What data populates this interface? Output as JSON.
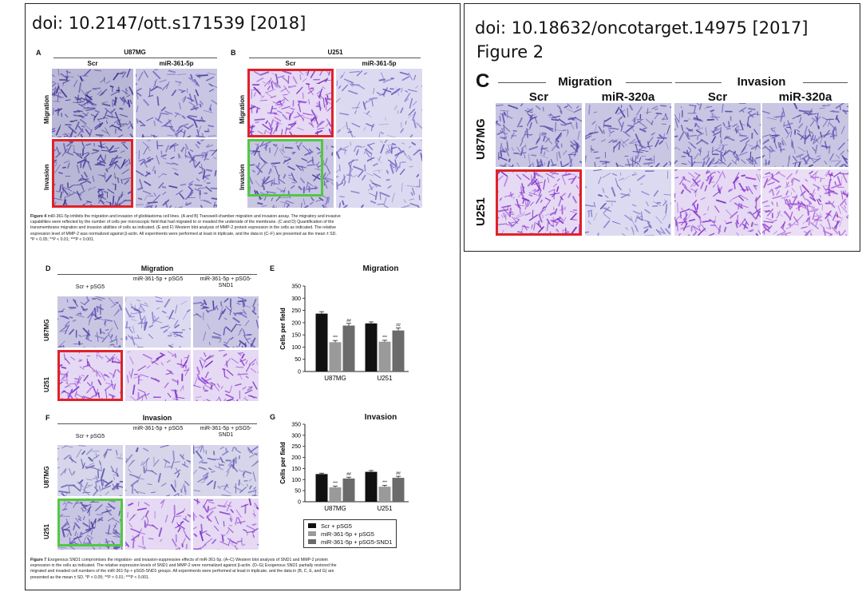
{
  "left": {
    "doi": "doi: 10.2147/ott.s171539 [2018]",
    "fig4": {
      "panel_a": {
        "letter": "A",
        "title": "U87MG",
        "cols": [
          "Scr",
          "miR-361-5p"
        ]
      },
      "panel_b": {
        "letter": "B",
        "title": "U251",
        "cols": [
          "Scr",
          "miR-361-5p"
        ]
      },
      "rows": [
        "Migration",
        "Invasion"
      ],
      "caption": [
        {
          "bold": "Figure 4 ",
          "text": "miR-361-5p inhibits the migration and invasion of glioblastoma cell lines. (A and B) Transwell-chamber migration and invasion assay. The migratory and invasive"
        },
        {
          "bold": "",
          "text": "capabilities were reflected by the number of cells per microscopic field that had migrated to or invaded the underside of the membrane. (C and D) Quantification of the"
        },
        {
          "bold": "",
          "text": "transmembrane migration and invasion abilities of cells as indicated. (E and F) Western blot analysis of MMP-2 protein expression in the cells as indicated. The relative"
        },
        {
          "bold": "",
          "text": "expression level of MMP-2 was normalized against β-actin. All experiments were performed at least in triplicate, and the data in (C–F) are presented as the mean ± SD."
        },
        {
          "bold": "",
          "text": "*P < 0.05; **P < 0.01; ***P < 0.001."
        }
      ]
    },
    "fig7": {
      "panel_d": {
        "letter": "D",
        "title": "Migration"
      },
      "panel_f": {
        "letter": "F",
        "title": "Invasion"
      },
      "cols": [
        "Scr + pSG5",
        "miR-361-5p + pSG5",
        "miR-361-5p + pSG5-SND1"
      ],
      "rows": [
        "U87MG",
        "U251"
      ],
      "caption": [
        {
          "bold": "Figure 7 ",
          "text": "Exogenous SND1 compromises the migration- and invasion-suppressive effects of miR-361-5p. (A–C) Western blot analysis of SND1 and MMP-2 protein"
        },
        {
          "bold": "",
          "text": "expression in the cells as indicated. The relative expression levels of SND1 and MMP-2 were normalized against β-actin. (D–G) Exogenous SND1 partially restored the"
        },
        {
          "bold": "",
          "text": "migrated and invaded cell numbers of the miR-361-5p + pSG5-SND1 groups. All experiments were performed at least in triplicate, and the data in (B, C, E, and G) are"
        },
        {
          "bold": "",
          "text": "presented as the mean ± SD. *P < 0.05; **P < 0.01; ***P < 0.001."
        }
      ]
    },
    "legend": [
      "Scr + pSG5",
      "miR-361-5p + pSG5",
      "miR-361-5p + pSG5-SND1"
    ]
  },
  "right": {
    "doi": "doi: 10.18632/oncotarget.14975 [2017]",
    "figure": "Figure 2",
    "panel_letter": "C",
    "groups": [
      "Migration",
      "Invasion"
    ],
    "cols": [
      "Scr",
      "miR-320a",
      "Scr",
      "miR-320a"
    ],
    "rows": [
      "U87MG",
      "U251"
    ]
  },
  "colors": {
    "bar1": "#111111",
    "bar2": "#9a9a9a",
    "bar3": "#6b6b6b",
    "red_box": "#e0222a",
    "green_box": "#52c843"
  },
  "chart_data": [
    {
      "type": "bar",
      "letter": "E",
      "title": "Migration",
      "ylabel": "Cells per field",
      "categories": [
        "U87MG",
        "U251"
      ],
      "series": [
        {
          "name": "Scr + pSG5",
          "values": [
            237,
            197
          ]
        },
        {
          "name": "miR-361-5p + pSG5",
          "values": [
            120,
            122
          ]
        },
        {
          "name": "miR-361-5p + pSG5-SND1",
          "values": [
            188,
            168
          ]
        }
      ],
      "errors": [
        [
          8,
          6
        ],
        [
          7,
          6
        ],
        [
          9,
          10
        ]
      ],
      "sig": [
        [
          "",
          ""
        ],
        [
          "***",
          "***"
        ],
        [
          "##",
          "##"
        ]
      ],
      "ylim": [
        0,
        350
      ],
      "yticks": [
        0,
        50,
        100,
        150,
        200,
        250,
        300,
        350
      ]
    },
    {
      "type": "bar",
      "letter": "G",
      "title": "Invasion",
      "ylabel": "Cells per field",
      "categories": [
        "U87MG",
        "U251"
      ],
      "series": [
        {
          "name": "Scr + pSG5",
          "values": [
            125,
            135
          ]
        },
        {
          "name": "miR-361-5p + pSG5",
          "values": [
            65,
            68
          ]
        },
        {
          "name": "miR-361-5p + pSG5-SND1",
          "values": [
            105,
            108
          ]
        }
      ],
      "errors": [
        [
          4,
          6
        ],
        [
          5,
          6
        ],
        [
          6,
          7
        ]
      ],
      "sig": [
        [
          "",
          ""
        ],
        [
          "***",
          "***"
        ],
        [
          "##",
          "##"
        ]
      ],
      "ylim": [
        0,
        350
      ],
      "yticks": [
        0,
        50,
        100,
        150,
        200,
        250,
        300,
        350
      ]
    }
  ]
}
